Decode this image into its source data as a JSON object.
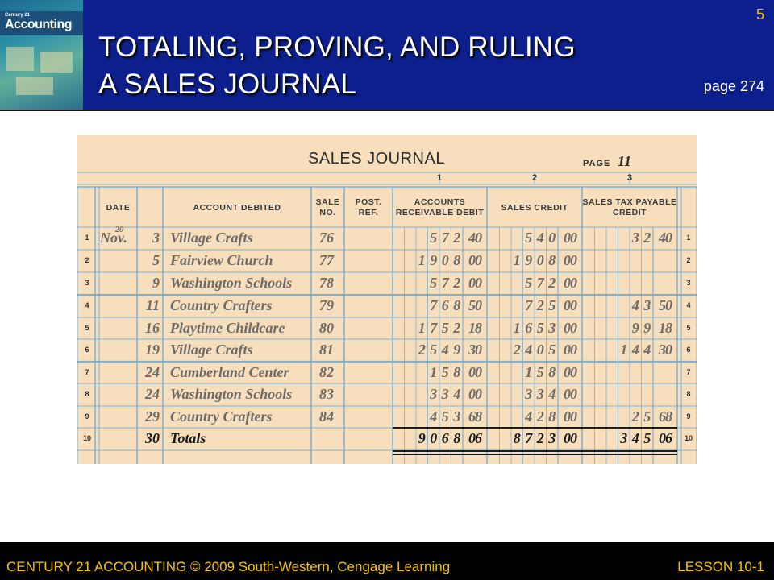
{
  "header": {
    "title_line1": "TOTALING, PROVING, AND RULING",
    "title_line2": "A SALES JOURNAL",
    "slide_number": "5",
    "page_ref": "page 274",
    "cover_title": "Accounting",
    "cover_sub": "Century 21"
  },
  "journal": {
    "title": "SALES JOURNAL",
    "page_label": "PAGE",
    "page_value": "11",
    "col_numbers": [
      "1",
      "2",
      "3"
    ],
    "headers": {
      "date": "DATE",
      "account": "ACCOUNT DEBITED",
      "sale_no": "SALE NO.",
      "post_ref": "POST. REF.",
      "ar_debit": "ACCOUNTS RECEIVABLE DEBIT",
      "sales_credit": "SALES CREDIT",
      "tax_credit": "SALES TAX PAYABLE CREDIT"
    },
    "year": "20--",
    "rows": [
      {
        "line": "1",
        "month": "Nov.",
        "day": "3",
        "account": "Village Crafts",
        "sale_no": "76",
        "ar": "57240",
        "sales": "54000",
        "tax": "3240"
      },
      {
        "line": "2",
        "month": "",
        "day": "5",
        "account": "Fairview Church",
        "sale_no": "77",
        "ar": "190800",
        "sales": "190800",
        "tax": ""
      },
      {
        "line": "3",
        "month": "",
        "day": "9",
        "account": "Washington Schools",
        "sale_no": "78",
        "ar": "57200",
        "sales": "57200",
        "tax": ""
      },
      {
        "line": "4",
        "month": "",
        "day": "11",
        "account": "Country Crafters",
        "sale_no": "79",
        "ar": "76850",
        "sales": "72500",
        "tax": "4350"
      },
      {
        "line": "5",
        "month": "",
        "day": "16",
        "account": "Playtime Childcare",
        "sale_no": "80",
        "ar": "175218",
        "sales": "165300",
        "tax": "9918"
      },
      {
        "line": "6",
        "month": "",
        "day": "19",
        "account": "Village Crafts",
        "sale_no": "81",
        "ar": "254930",
        "sales": "240500",
        "tax": "14430"
      },
      {
        "line": "7",
        "month": "",
        "day": "24",
        "account": "Cumberland Center",
        "sale_no": "82",
        "ar": "15800",
        "sales": "15800",
        "tax": ""
      },
      {
        "line": "8",
        "month": "",
        "day": "24",
        "account": "Washington Schools",
        "sale_no": "83",
        "ar": "33400",
        "sales": "33400",
        "tax": ""
      },
      {
        "line": "9",
        "month": "",
        "day": "29",
        "account": "Country Crafters",
        "sale_no": "84",
        "ar": "45368",
        "sales": "42800",
        "tax": "2568"
      },
      {
        "line": "10",
        "month": "",
        "day": "30",
        "account": "Totals",
        "sale_no": "",
        "ar": "906806",
        "sales": "872300",
        "tax": "34506",
        "is_total": true
      }
    ]
  },
  "footer": {
    "left": "CENTURY 21 ACCOUNTING © 2009 South-Western, Cengage Learning",
    "right": "LESSON 10-1"
  },
  "colors": {
    "header_bg": "#0c1f8c",
    "accent_yellow": "#f5c400",
    "paper": "#f7dfbd",
    "grid_blue": "#7fb0cf",
    "ink_gray": "#6e6a68"
  }
}
